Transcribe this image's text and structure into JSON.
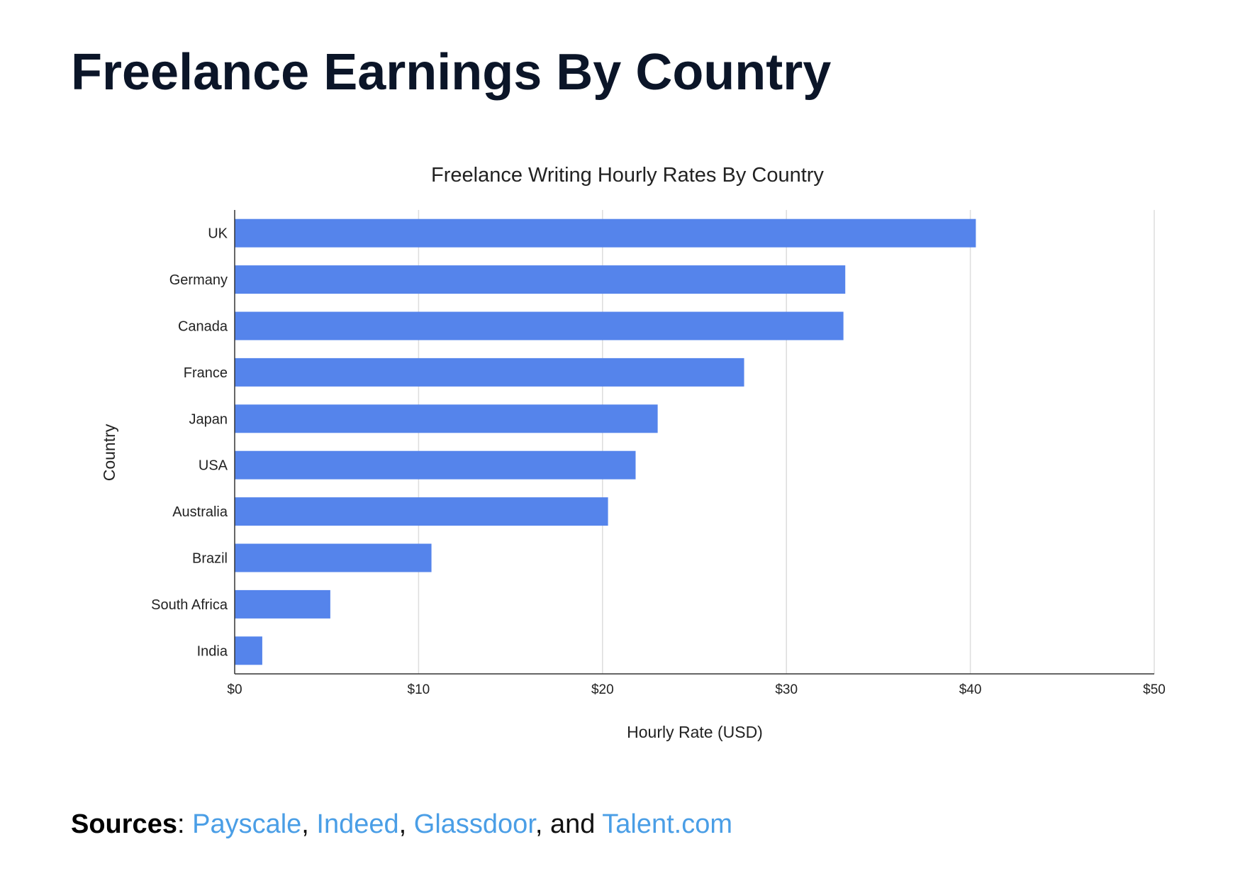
{
  "page": {
    "title": "Freelance Earnings By Country"
  },
  "sources": {
    "label": "Sources",
    "colon": ": ",
    "links": [
      "Payscale",
      "Indeed",
      "Glassdoor",
      "Talent.com"
    ],
    "separator1": ", ",
    "separator2": ", ",
    "separator3": ", and ",
    "link_color": "#4a9ee6"
  },
  "chart_data": {
    "type": "bar",
    "orientation": "horizontal",
    "title": "Freelance Writing Hourly Rates By Country",
    "xlabel": "Hourly Rate (USD)",
    "ylabel": "Country",
    "categories": [
      "UK",
      "Germany",
      "Canada",
      "France",
      "Japan",
      "USA",
      "Australia",
      "Brazil",
      "South Africa",
      "India"
    ],
    "values": [
      40.3,
      33.2,
      33.1,
      27.7,
      23.0,
      21.8,
      20.3,
      10.7,
      5.2,
      1.5
    ],
    "xlim": [
      0,
      50
    ],
    "x_ticks": [
      0,
      10,
      20,
      30,
      40,
      50
    ],
    "x_tick_labels": [
      "$0",
      "$10",
      "$20",
      "$30",
      "$40",
      "$50"
    ],
    "grid": true,
    "legend": "none",
    "bar_color": "#5584eb"
  }
}
